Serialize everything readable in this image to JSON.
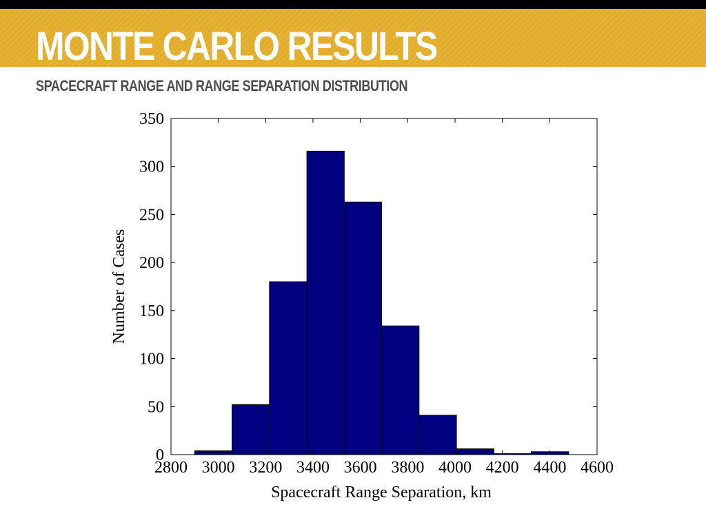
{
  "slide": {
    "title": "MONTE CARLO RESULTS",
    "subtitle": "SPACECRAFT RANGE  AND RANGE SEPARATION DISTRIBUTION"
  },
  "colors": {
    "title_band": "#e3ad2c",
    "top_bar": "#000000",
    "bar_fill": "#000080",
    "subtitle_text": "#4d4d4d"
  },
  "chart_data": {
    "type": "bar",
    "xlabel": "Spacecraft Range Separation, km",
    "ylabel": "Number of Cases",
    "xlim": [
      2800,
      4600
    ],
    "ylim": [
      0,
      350
    ],
    "xticks": [
      2800,
      3000,
      3200,
      3400,
      3600,
      3800,
      4000,
      4200,
      4400,
      4600
    ],
    "yticks": [
      0,
      50,
      100,
      150,
      200,
      250,
      300,
      350
    ],
    "grid": false,
    "bin_edges": [
      2900,
      3058,
      3216,
      3374,
      3532,
      3690,
      3848,
      4006,
      4164,
      4322,
      4480
    ],
    "values": [
      4,
      52,
      180,
      316,
      263,
      134,
      41,
      6,
      1,
      3
    ]
  }
}
